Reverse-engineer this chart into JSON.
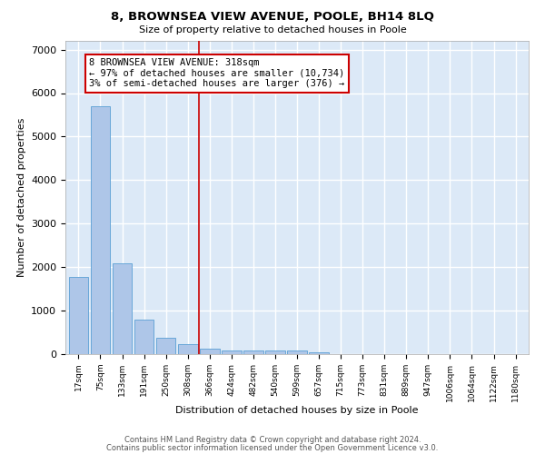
{
  "title": "8, BROWNSEA VIEW AVENUE, POOLE, BH14 8LQ",
  "subtitle": "Size of property relative to detached houses in Poole",
  "xlabel": "Distribution of detached houses by size in Poole",
  "ylabel": "Number of detached properties",
  "bar_color": "#aec6e8",
  "bar_edge_color": "#5a9fd4",
  "background_color": "#ffffff",
  "plot_bg_color": "#dce9f7",
  "grid_color": "#ffffff",
  "categories": [
    "17sqm",
    "75sqm",
    "133sqm",
    "191sqm",
    "250sqm",
    "308sqm",
    "366sqm",
    "424sqm",
    "482sqm",
    "540sqm",
    "599sqm",
    "657sqm",
    "715sqm",
    "773sqm",
    "831sqm",
    "889sqm",
    "947sqm",
    "1006sqm",
    "1064sqm",
    "1122sqm",
    "1180sqm"
  ],
  "values": [
    1780,
    5700,
    2080,
    800,
    370,
    230,
    130,
    90,
    90,
    75,
    90,
    50,
    0,
    0,
    0,
    0,
    0,
    0,
    0,
    0,
    0
  ],
  "property_line_x": 5.5,
  "property_line_color": "#cc0000",
  "annotation_text": "8 BROWNSEA VIEW AVENUE: 318sqm\n← 97% of detached houses are smaller (10,734)\n3% of semi-detached houses are larger (376) →",
  "annotation_box_color": "#cc0000",
  "ylim": [
    0,
    7200
  ],
  "yticks": [
    0,
    1000,
    2000,
    3000,
    4000,
    5000,
    6000,
    7000
  ],
  "footer_line1": "Contains HM Land Registry data © Crown copyright and database right 2024.",
  "footer_line2": "Contains public sector information licensed under the Open Government Licence v3.0."
}
